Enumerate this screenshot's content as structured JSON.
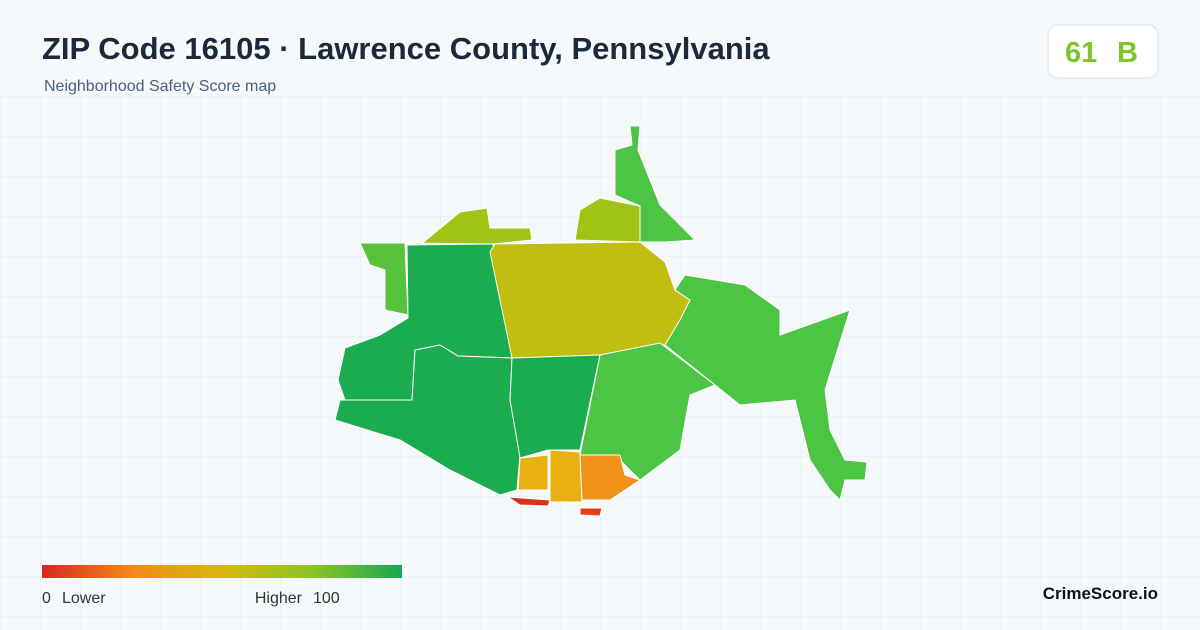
{
  "header": {
    "title": "ZIP Code 16105 · Lawrence County, Pennsylvania",
    "subtitle": "Neighborhood Safety Score map"
  },
  "score": {
    "value": "61",
    "grade": "B"
  },
  "legend": {
    "min": "0",
    "min_label": "Lower",
    "max_label": "Higher",
    "max": "100"
  },
  "brand": "CrimeScore.io"
}
